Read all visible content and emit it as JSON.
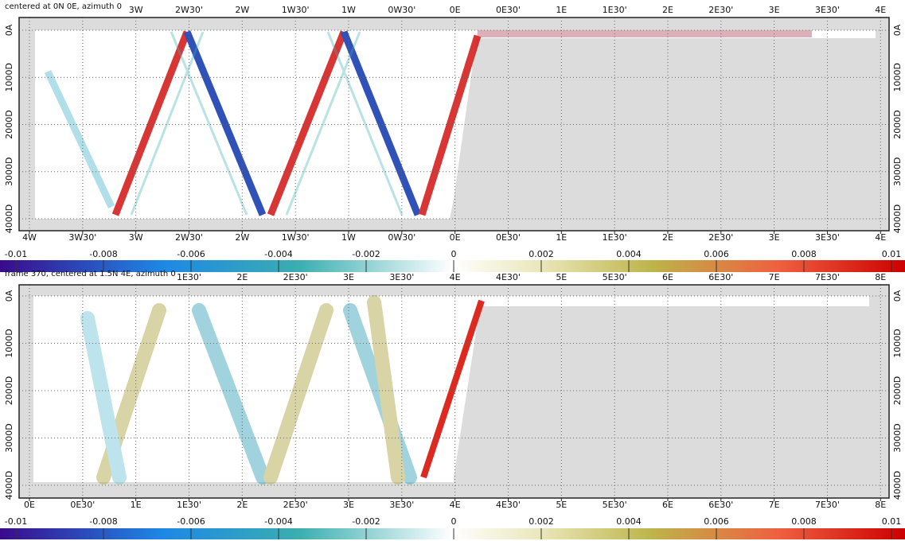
{
  "panels": [
    {
      "title": "centered at 0N 0E, azimuth 0",
      "top_ticks": [
        "3W",
        "2W30'",
        "2W",
        "1W30'",
        "1W",
        "0W30'",
        "0E",
        "0E30'",
        "1E",
        "1E30'",
        "2E",
        "2E30'",
        "3E",
        "3E30'",
        "4E"
      ],
      "bottom_ticks": [
        "4W",
        "3W30'",
        "3W",
        "2W30'",
        "2W",
        "1W30'",
        "1W",
        "0W30'",
        "0E",
        "0E30'",
        "1E",
        "1E30'",
        "2E",
        "2E30'",
        "3E",
        "3E30'",
        "4E"
      ],
      "y_ticks": [
        "0A",
        "1000D",
        "2000D",
        "3000D",
        "4000D"
      ],
      "colorbar": {
        "lim": [
          -0.01,
          0.01
        ],
        "ticks": [
          -0.01,
          -0.008,
          -0.006,
          -0.004,
          -0.002,
          0,
          0.002,
          0.004,
          0.006,
          0.008,
          0.01
        ]
      }
    },
    {
      "title": "frame 370, centered at 1.5N 4E, azimuth 0",
      "top_ticks": [
        "1E30'",
        "2E",
        "2E30'",
        "3E",
        "3E30'",
        "4E",
        "4E30'",
        "5E",
        "5E30'",
        "6E",
        "6E30'",
        "7E",
        "7E30'",
        "8E"
      ],
      "bottom_ticks": [
        "0E",
        "0E30'",
        "1E",
        "1E30'",
        "2E",
        "2E30'",
        "3E",
        "3E30'",
        "4E",
        "4E30'",
        "5E",
        "5E30'",
        "6E",
        "6E30'",
        "7E",
        "7E30'",
        "8E"
      ],
      "y_ticks": [
        "0A",
        "1000D",
        "2000D",
        "3000D",
        "4000D"
      ],
      "colorbar": {
        "lim": [
          -0.01,
          0.01
        ],
        "ticks": [
          -0.01,
          -0.008,
          -0.006,
          -0.004,
          -0.002,
          0,
          0.002,
          0.004,
          0.006,
          0.008,
          0.01
        ]
      }
    }
  ]
}
